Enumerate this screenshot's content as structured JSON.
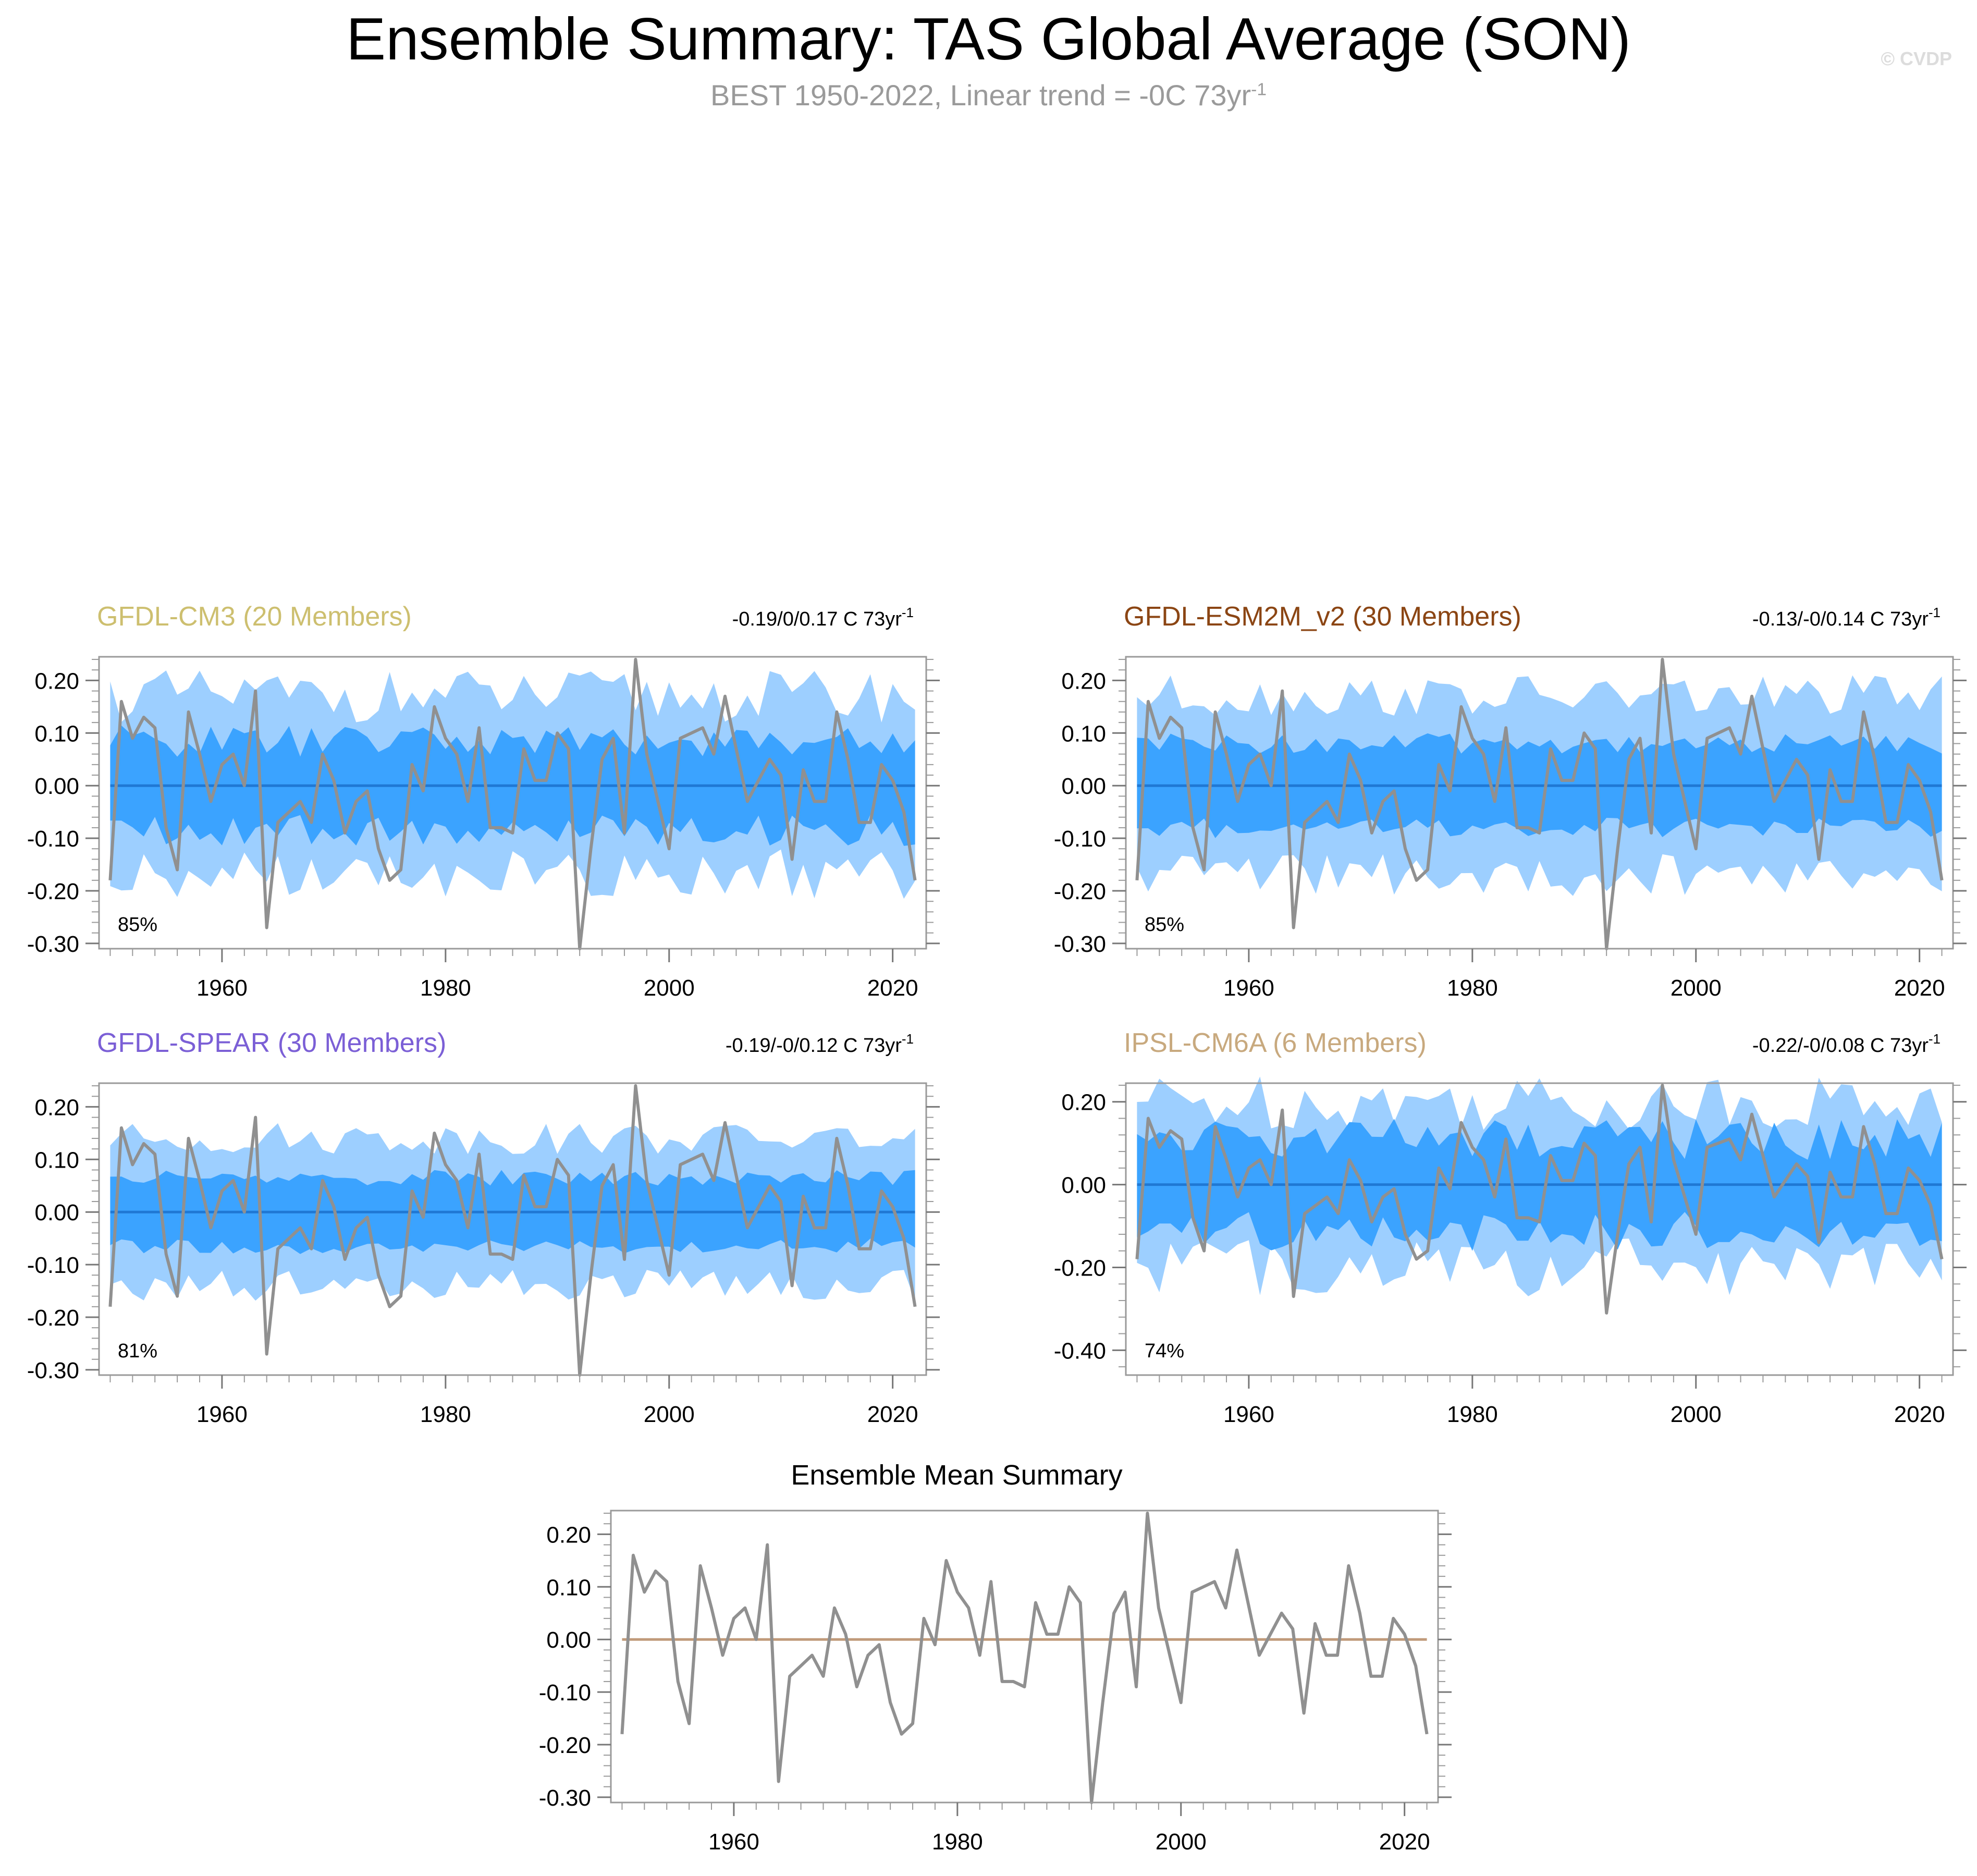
{
  "title": "Ensemble Summary: TAS Global Average (SON)",
  "subtitle": "BEST 1950-2022, Linear trend = -0C 73yr",
  "subtitle_sup": "-1",
  "copyright": "© CVDP",
  "colors": {
    "inner_band": "#3ba3ff",
    "outer_band": "#9dcfff",
    "ensemble_mean": "#1f78d4",
    "observations": "#909090",
    "mean_summary_zero": "#c09a7a",
    "axis": "#000000"
  },
  "chart_data": [
    {
      "type": "line",
      "id": "gfdl-cm3",
      "title": "GFDL-CM3 (20 Members)",
      "title_color": "#cdbf6f",
      "trend_label": "-0.19/0/0.17 C 73yr",
      "trend_sup": "-1",
      "percent_label": "85%",
      "x_range": [
        1950,
        2022
      ],
      "xlim": [
        1949,
        2023
      ],
      "ylim": [
        -0.31,
        0.245
      ],
      "yticks": [
        0.2,
        0.1,
        0.0,
        -0.1,
        -0.2,
        -0.3
      ],
      "ytick_labels": [
        "0.20",
        "0.10",
        "0.00",
        "-0.10",
        "-0.20",
        "-0.30"
      ],
      "xticks": [
        1960,
        1980,
        2000,
        2020
      ],
      "xtick_labels": [
        "1960",
        "1980",
        "2000",
        "2020"
      ],
      "inner_amp": 0.085,
      "inner_var": 0.03,
      "outer_amp": 0.17,
      "outer_var": 0.05,
      "mean_value": 0.0
    },
    {
      "type": "line",
      "id": "gfdl-esm2m-v2",
      "title": "GFDL-ESM2M_v2 (30 Members)",
      "title_color": "#8b4513",
      "trend_label": "-0.13/-0/0.14 C 73yr",
      "trend_sup": "-1",
      "percent_label": "85%",
      "x_range": [
        1950,
        2022
      ],
      "xlim": [
        1949,
        2023
      ],
      "ylim": [
        -0.31,
        0.245
      ],
      "yticks": [
        0.2,
        0.1,
        0.0,
        -0.1,
        -0.2,
        -0.3
      ],
      "ytick_labels": [
        "0.20",
        "0.10",
        "0.00",
        "-0.10",
        "-0.20",
        "-0.30"
      ],
      "xticks": [
        1960,
        1980,
        2000,
        2020
      ],
      "xtick_labels": [
        "1960",
        "1980",
        "2000",
        "2020"
      ],
      "inner_amp": 0.08,
      "inner_var": 0.02,
      "outer_amp": 0.17,
      "outer_var": 0.04,
      "mean_value": 0.0
    },
    {
      "type": "line",
      "id": "gfdl-spear",
      "title": "GFDL-SPEAR (30 Members)",
      "title_color": "#7b5fd6",
      "trend_label": "-0.19/-0/0.12 C 73yr",
      "trend_sup": "-1",
      "percent_label": "81%",
      "x_range": [
        1950,
        2022
      ],
      "xlim": [
        1949,
        2023
      ],
      "ylim": [
        -0.31,
        0.245
      ],
      "yticks": [
        0.2,
        0.1,
        0.0,
        -0.1,
        -0.2,
        -0.3
      ],
      "ytick_labels": [
        "0.20",
        "0.10",
        "0.00",
        "-0.10",
        "-0.20",
        "-0.30"
      ],
      "xticks": [
        1960,
        1980,
        2000,
        2020
      ],
      "xtick_labels": [
        "1960",
        "1980",
        "2000",
        "2020"
      ],
      "inner_amp": 0.065,
      "inner_var": 0.015,
      "outer_amp": 0.14,
      "outer_var": 0.03,
      "mean_value": 0.0
    },
    {
      "type": "line",
      "id": "ipsl-cm6a",
      "title": "IPSL-CM6A (6 Members)",
      "title_color": "#c8a97e",
      "trend_label": "-0.22/-0/0.08 C 73yr",
      "trend_sup": "-1",
      "percent_label": "74%",
      "x_range": [
        1950,
        2022
      ],
      "xlim": [
        1949,
        2023
      ],
      "ylim": [
        -0.46,
        0.245
      ],
      "yticks": [
        0.2,
        0.0,
        -0.2,
        -0.4
      ],
      "ytick_labels": [
        "0.20",
        "0.00",
        "-0.20",
        "-0.40"
      ],
      "xticks": [
        1960,
        1980,
        2000,
        2020
      ],
      "xtick_labels": [
        "1960",
        "1980",
        "2000",
        "2020"
      ],
      "inner_amp": 0.11,
      "inner_var": 0.05,
      "outer_amp": 0.2,
      "outer_var": 0.07,
      "mean_value": 0.0
    },
    {
      "type": "line",
      "id": "ensemble-mean-summary",
      "title": "Ensemble Mean Summary",
      "title_color": "#000000",
      "x_range": [
        1950,
        2022
      ],
      "xlim": [
        1949,
        2023
      ],
      "ylim": [
        -0.31,
        0.245
      ],
      "yticks": [
        0.2,
        0.1,
        0.0,
        -0.1,
        -0.2,
        -0.3
      ],
      "ytick_labels": [
        "0.20",
        "0.10",
        "0.00",
        "-0.10",
        "-0.20",
        "-0.30"
      ],
      "xticks": [
        1960,
        1980,
        2000,
        2020
      ],
      "xtick_labels": [
        "1960",
        "1980",
        "2000",
        "2020"
      ],
      "mean_value": 0.0
    }
  ],
  "observations": {
    "name": "BEST",
    "years_start": 1950,
    "values": [
      -0.18,
      0.16,
      0.09,
      0.13,
      0.11,
      -0.08,
      -0.16,
      0.14,
      0.06,
      -0.03,
      0.04,
      0.06,
      0.0,
      0.18,
      -0.27,
      -0.07,
      -0.05,
      -0.03,
      -0.07,
      0.06,
      0.01,
      -0.09,
      -0.03,
      -0.01,
      -0.12,
      -0.18,
      -0.16,
      0.04,
      -0.01,
      0.15,
      0.09,
      0.06,
      -0.03,
      0.11,
      -0.08,
      -0.08,
      -0.09,
      0.07,
      0.01,
      0.01,
      0.1,
      0.07,
      -0.31,
      -0.12,
      0.05,
      0.09,
      -0.09,
      0.24,
      0.06,
      -0.03,
      -0.12,
      0.09,
      0.1,
      0.11,
      0.06,
      0.17,
      0.07,
      -0.03,
      0.01,
      0.05,
      0.02,
      -0.14,
      0.03,
      -0.03,
      -0.03,
      0.14,
      0.05,
      -0.07,
      -0.07,
      0.04,
      0.01,
      -0.05,
      -0.18
    ]
  }
}
